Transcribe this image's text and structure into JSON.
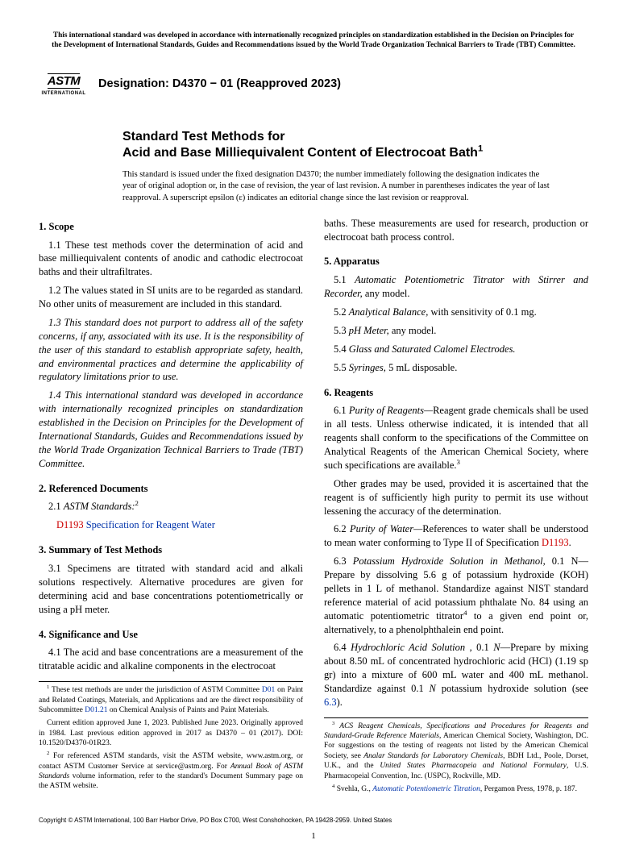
{
  "topStatement": "This international standard was developed in accordance with internationally recognized principles on standardization established in the Decision on Principles for the Development of International Standards, Guides and Recommendations issued by the World Trade Organization Technical Barriers to Trade (TBT) Committee.",
  "logo": {
    "top": "ASTM",
    "bottom": "INTERNATIONAL"
  },
  "designation": "Designation: D4370 − 01 (Reapproved 2023)",
  "title": {
    "line1": "Standard Test Methods for",
    "line2": "Acid and Base Milliequivalent Content of Electrocoat Bath",
    "sup": "1"
  },
  "titleNote": "This standard is issued under the fixed designation D4370; the number immediately following the designation indicates the year of original adoption or, in the case of revision, the year of last revision. A number in parentheses indicates the year of last reapproval. A superscript epsilon (ε) indicates an editorial change since the last revision or reapproval.",
  "sections": {
    "scope": {
      "heading": "1. Scope",
      "p1": "1.1 These test methods cover the determination of acid and base milliequivalent contents of anodic and cathodic electrocoat baths and their ultrafiltrates.",
      "p2": "1.2 The values stated in SI units are to be regarded as standard. No other units of measurement are included in this standard.",
      "p3": "1.3 This standard does not purport to address all of the safety concerns, if any, associated with its use. It is the responsibility of the user of this standard to establish appropriate safety, health, and environmental practices and determine the applicability of regulatory limitations prior to use.",
      "p4": "1.4 This international standard was developed in accordance with internationally recognized principles on standardization established in the Decision on Principles for the Development of International Standards, Guides and Recommendations issued by the World Trade Organization Technical Barriers to Trade (TBT) Committee."
    },
    "refdocs": {
      "heading": "2. Referenced Documents",
      "p1_prefix": "2.1 ",
      "p1_italic": "ASTM Standards:",
      "p1_sup": "2",
      "ref_code": "D1193",
      "ref_title": "Specification for Reagent Water"
    },
    "summary": {
      "heading": "3. Summary of Test Methods",
      "p1": "3.1 Specimens are titrated with standard acid and alkali solutions respectively. Alternative procedures are given for determining acid and base concentrations potentiometrically or using a pH meter."
    },
    "significance": {
      "heading": "4. Significance and Use",
      "p1a": "4.1 The acid and base concentrations are a measurement of the titratable acidic and alkaline components in the electrocoat",
      "p1b": "baths. These measurements are used for research, production or electrocoat bath process control."
    },
    "apparatus": {
      "heading": "5. Apparatus",
      "p1_prefix": "5.1 ",
      "p1_italic": "Automatic Potentiometric Titrator with Stirrer and Recorder,",
      "p1_tail": " any model.",
      "p2_prefix": "5.2 ",
      "p2_italic": "Analytical Balance,",
      "p2_tail": " with sensitivity of 0.1 mg.",
      "p3_prefix": "5.3 ",
      "p3_italic": "pH Meter,",
      "p3_tail": " any model.",
      "p4_prefix": "5.4 ",
      "p4_italic": "Glass and Saturated Calomel Electrodes.",
      "p5_prefix": "5.5 ",
      "p5_italic": "Syringes,",
      "p5_tail": " 5 mL disposable."
    },
    "reagents": {
      "heading": "6. Reagents",
      "p1_prefix": "6.1 ",
      "p1_italic": "Purity of Reagents—",
      "p1_body": "Reagent grade chemicals shall be used in all tests. Unless otherwise indicated, it is intended that all reagents shall conform to the specifications of the Committee on Analytical Reagents of the American Chemical Society, where such specifications are available.",
      "p1_sup": "3",
      "p1_extra": "Other grades may be used, provided it is ascertained that the reagent is of sufficiently high purity to permit its use without lessening the accuracy of the determination.",
      "p2_prefix": "6.2 ",
      "p2_italic": "Purity of Water—",
      "p2_body": "References to water shall be understood to mean water conforming to Type II of Specification ",
      "p2_link": "D1193",
      "p2_tail": ".",
      "p3_prefix": "6.3 ",
      "p3_italic": "Potassium Hydroxide Solution in Methanol,",
      "p3_N": " 0.1 N—",
      "p3_body": "Prepare by dissolving 5.6 g of potassium hydroxide (KOH) pellets in 1 L of methanol. Standardize against NIST standard reference material of acid potassium phthalate No. 84 using an automatic potentiometric titrator",
      "p3_sup": "4",
      "p3_tail": " to a given end point or, alternatively, to a phenolphthalein end point.",
      "p4_prefix": "6.4 ",
      "p4_italic": "Hydrochloric Acid Solution ,",
      "p4_N_pre": " 0.1 ",
      "p4_N_italic": "N",
      "p4_body": "—Prepare by mixing about 8.50 mL of concentrated hydrochloric acid (HCl) (1.19 sp gr) into a mixture of 600 mL water and 400 mL methanol. Standardize against 0.1 ",
      "p4_N2_italic": "N",
      "p4_body2": " potassium hydroxide solution (see ",
      "p4_link": "6.3",
      "p4_tail": ")."
    }
  },
  "footnotesLeft": {
    "f1a": " These test methods are under the jurisdiction of ASTM Committee ",
    "f1link1": "D01",
    "f1b": " on Paint and Related Coatings, Materials, and Applications and are the direct responsibility of Subcommittee ",
    "f1link2": "D01.21",
    "f1c": " on Chemical Analysis of Paints and Paint Materials.",
    "f1d": "Current edition approved June 1, 2023. Published June 2023. Originally approved in 1984. Last previous edition approved in 2017 as D4370 – 01 (2017). DOI: 10.1520/D4370-01R23.",
    "f2a": " For referenced ASTM standards, visit the ASTM website, www.astm.org, or contact ASTM Customer Service at service@astm.org. For ",
    "f2_italic": "Annual Book of ASTM Standards",
    "f2b": " volume information, refer to the standard's Document Summary page on the ASTM website."
  },
  "footnotesRight": {
    "f3a_italic": "ACS Reagent Chemicals, Specifications and Procedures for Reagents and Standard-Grade Reference Materials",
    "f3a": ", American Chemical Society, Washington, DC. For suggestions on the testing of reagents not listed by the American Chemical Society, see ",
    "f3b_italic": "Analar Standards for Laboratory Chemicals",
    "f3b": ", BDH Ltd., Poole, Dorset, U.K., and the ",
    "f3c_italic": "United States Pharmacopeia and National Formulary",
    "f3c": ", U.S. Pharmacopeial Convention, Inc. (USPC), Rockville, MD.",
    "f4a": " Svehla, G., ",
    "f4_italic": "Automatic Potentiometric Titration",
    "f4b": ", Pergamon Press, 1978, p. 187."
  },
  "copyright": "Copyright © ASTM International, 100 Barr Harbor Drive, PO Box C700, West Conshohocken, PA 19428-2959. United States",
  "pageNum": "1"
}
